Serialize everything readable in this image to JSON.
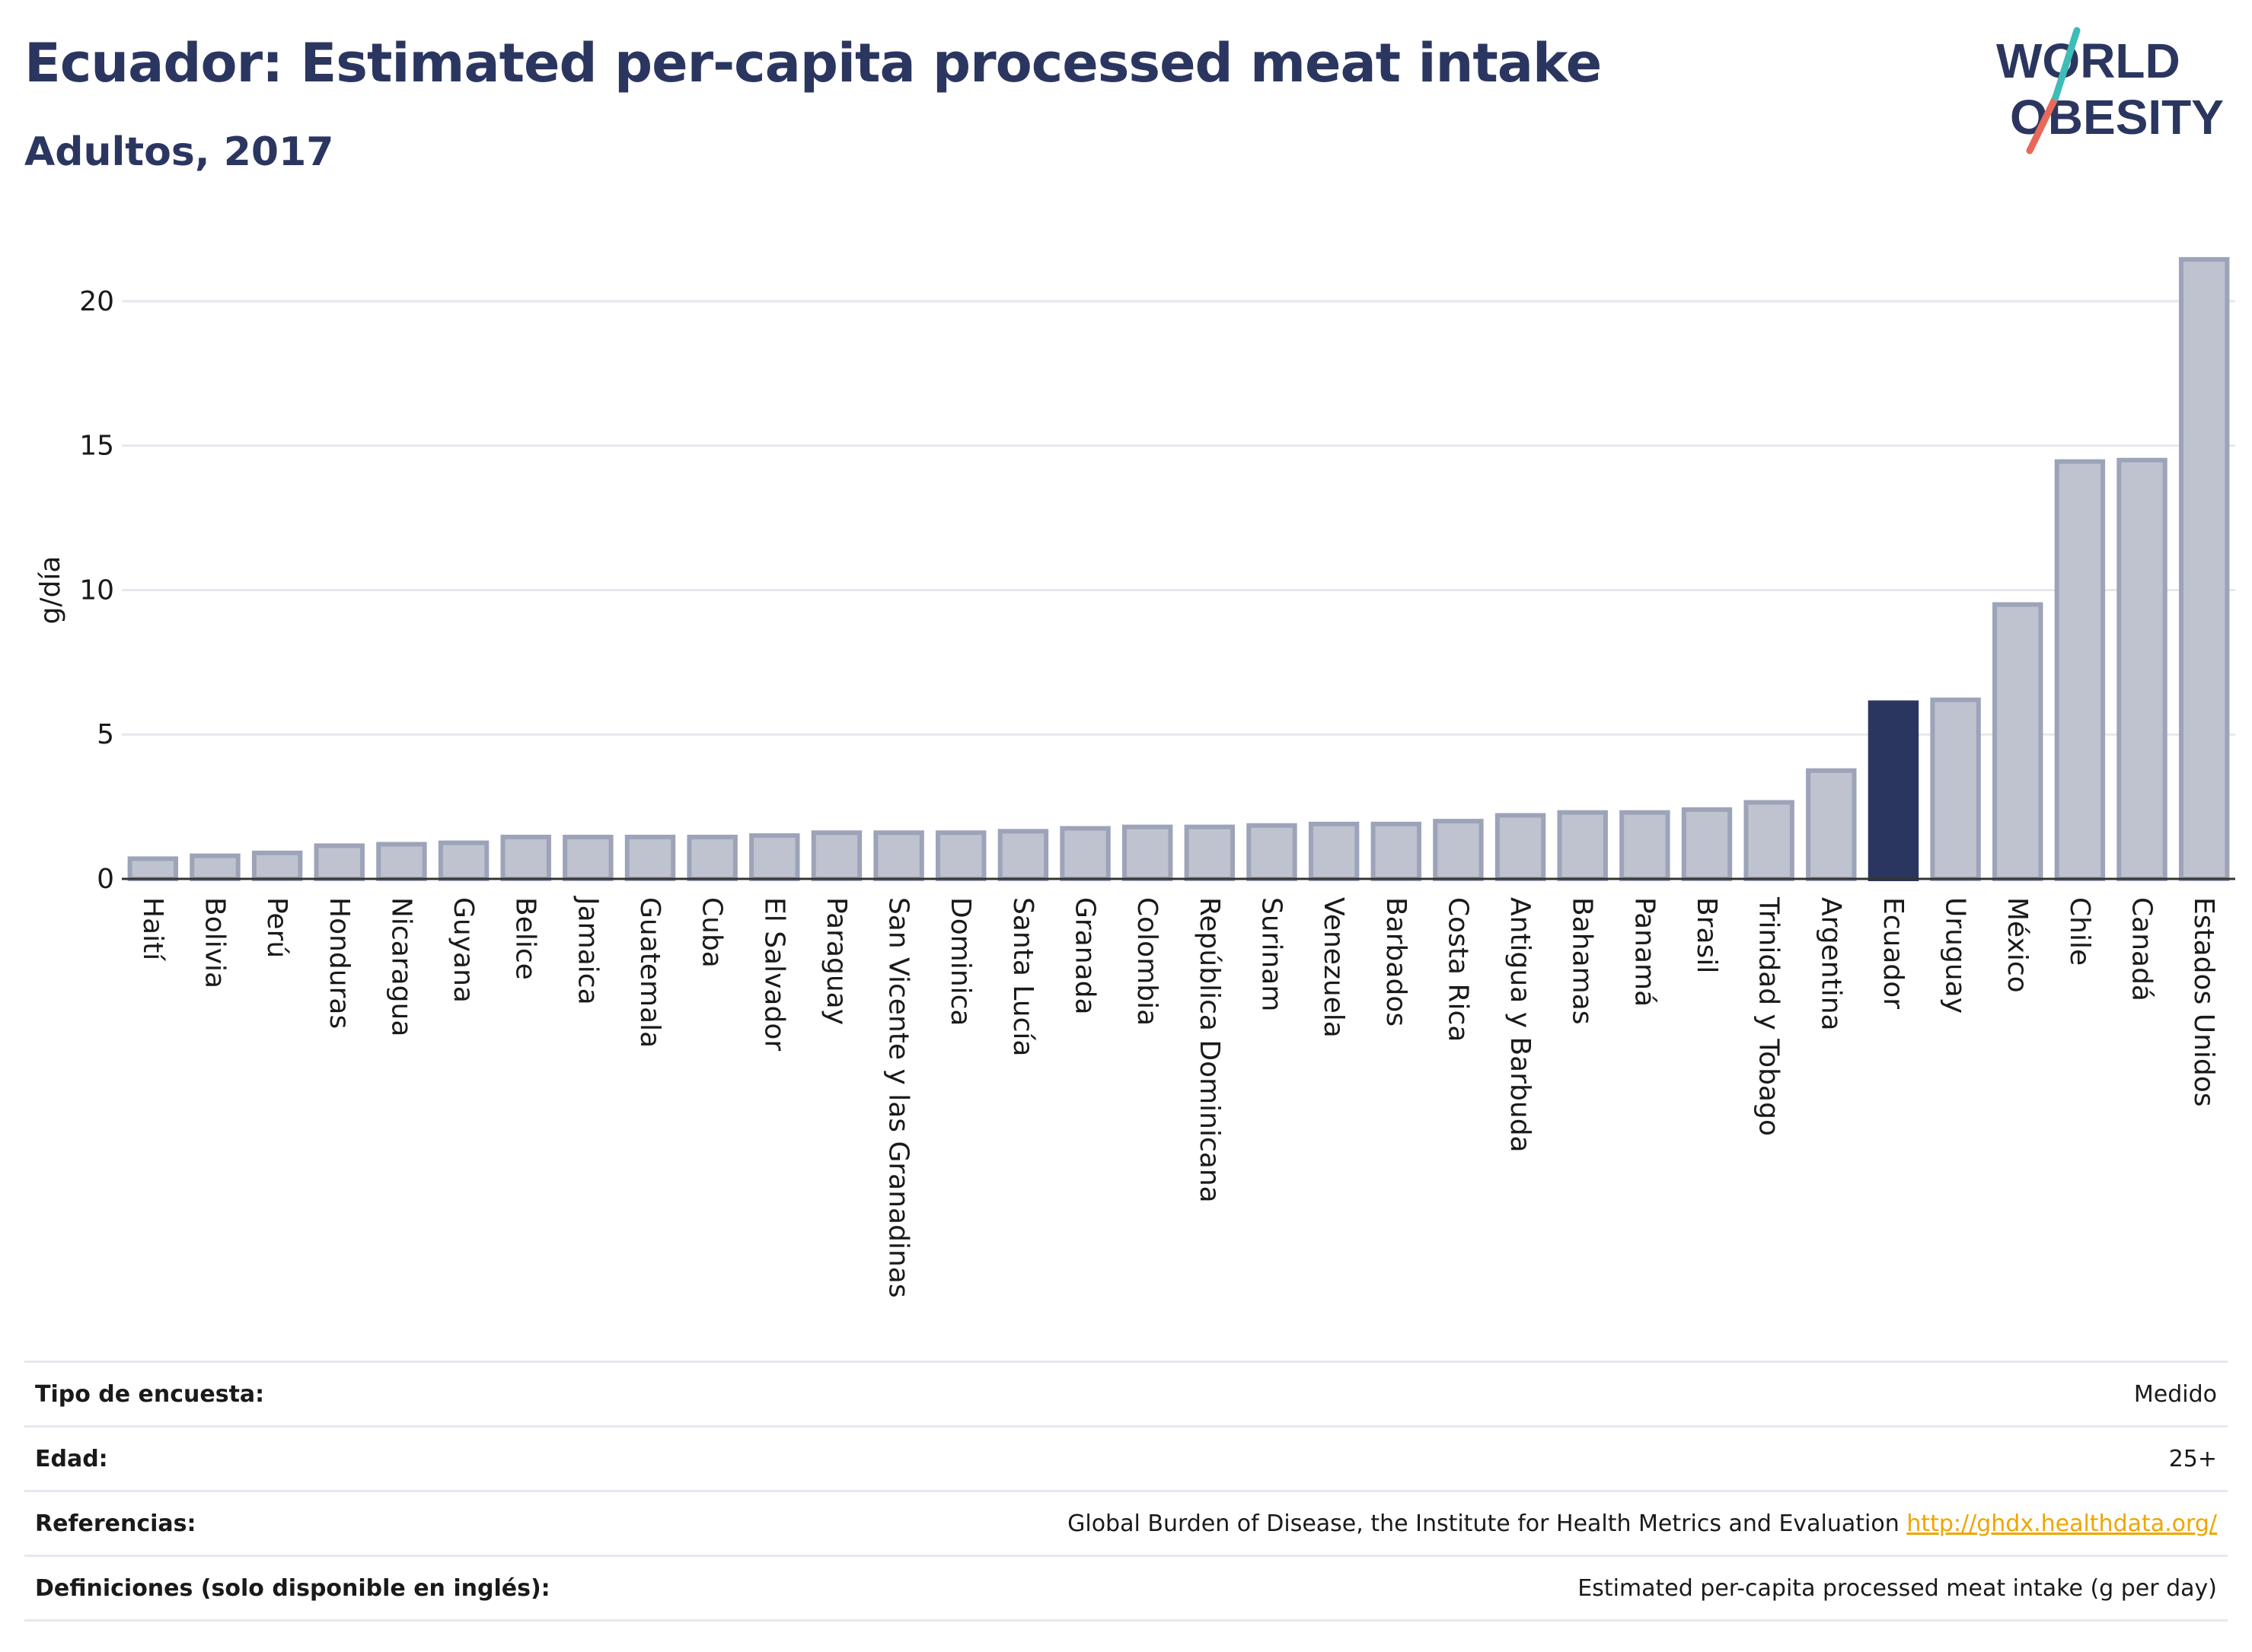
{
  "header": {
    "title": "Ecuador: Estimated per-capita processed meat intake",
    "subtitle": "Adultos, 2017"
  },
  "logo": {
    "line1": "WORLD",
    "line2": "OBESITY"
  },
  "colors": {
    "bar": "#bfc3cf",
    "bar_stroke": "#9da3b8",
    "highlight": "#2b3660",
    "grid": "#e6e8ef",
    "text": "#1a1a1a"
  },
  "chart_data": {
    "type": "bar",
    "ylabel": "g/día",
    "ylim": [
      0,
      22
    ],
    "yticks": [
      0,
      5,
      10,
      15,
      20
    ],
    "highlight": "Ecuador",
    "categories": [
      "Haití",
      "Bolivia",
      "Perú",
      "Honduras",
      "Nicaragua",
      "Guyana",
      "Belice",
      "Jamaica",
      "Guatemala",
      "Cuba",
      "El Salvador",
      "Paraguay",
      "San Vicente y las Granadinas",
      "Dominica",
      "Santa Lucía",
      "Granada",
      "Colombia",
      "República Dominicana",
      "Surinam",
      "Venezuela",
      "Barbados",
      "Costa Rica",
      "Antigua y Barbuda",
      "Bahamas",
      "Panamá",
      "Brasil",
      "Trinidad y Tobago",
      "Argentina",
      "Ecuador",
      "Uruguay",
      "México",
      "Chile",
      "Canadá",
      "Estados Unidos"
    ],
    "values": [
      0.7,
      0.8,
      0.9,
      1.15,
      1.2,
      1.25,
      1.45,
      1.45,
      1.45,
      1.45,
      1.5,
      1.6,
      1.6,
      1.6,
      1.65,
      1.75,
      1.8,
      1.8,
      1.85,
      1.9,
      1.9,
      2.0,
      2.2,
      2.3,
      2.3,
      2.4,
      2.65,
      3.75,
      6.1,
      6.2,
      9.5,
      14.45,
      14.5,
      21.45
    ]
  },
  "info": [
    {
      "label": "Tipo de encuesta:",
      "value": "Medido"
    },
    {
      "label": "Edad:",
      "value": "25+"
    },
    {
      "label": "Referencias:",
      "value": "Global Burden of Disease, the Institute for Health Metrics and Evaluation",
      "link": "http://ghdx.healthdata.org/"
    },
    {
      "label": "Definiciones (solo disponible en inglés):",
      "value": "Estimated per-capita processed meat intake (g per day)"
    }
  ]
}
